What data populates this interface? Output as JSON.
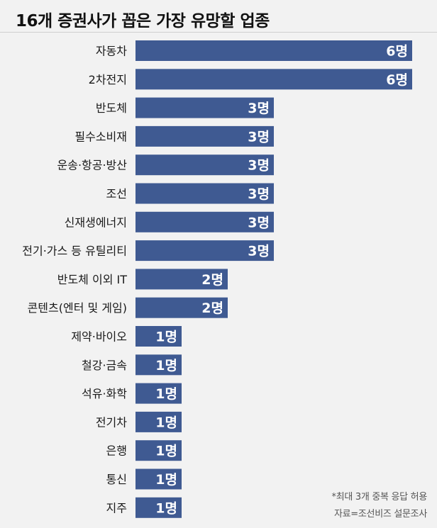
{
  "chart_data": {
    "type": "bar",
    "orientation": "horizontal",
    "title": "16개 증권사가 꼽은 가장 유망할 업종",
    "categories": [
      "자동차",
      "2차전지",
      "반도체",
      "필수소비재",
      "운송·항공·방산",
      "조선",
      "신재생에너지",
      "전기·가스 등 유틸리티",
      "반도체 이외 IT",
      "콘텐츠(엔터 및 게임)",
      "제약·바이오",
      "철강·금속",
      "석유·화학",
      "전기차",
      "은행",
      "통신",
      "지주"
    ],
    "values": [
      6,
      6,
      3,
      3,
      3,
      3,
      3,
      3,
      2,
      2,
      1,
      1,
      1,
      1,
      1,
      1,
      1
    ],
    "value_labels": [
      "6명",
      "6명",
      "3명",
      "3명",
      "3명",
      "3명",
      "3명",
      "3명",
      "2명",
      "2명",
      "1명",
      "1명",
      "1명",
      "1명",
      "1명",
      "1명",
      "1명"
    ],
    "xlim": [
      0,
      6
    ],
    "bar_color": "#3f5a92",
    "grid": false,
    "legend": "none"
  },
  "notes": {
    "footnote": "*최대 3개 중복 응답 허용",
    "source": "자료=조선비즈 설문조사"
  }
}
